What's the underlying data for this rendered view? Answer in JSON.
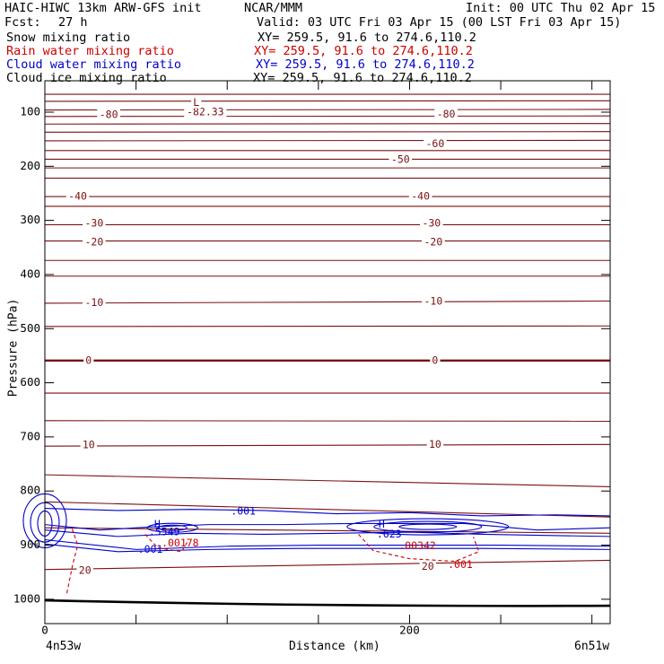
{
  "header": {
    "title": "HAIC-HIWC 13km ARW-GFS init",
    "org": "NCAR/MMM",
    "init": "Init: 00 UTC Thu 02 Apr 15",
    "fcst_label": "Fcst:",
    "fcst_value": "27 h",
    "valid": "Valid: 03 UTC Fri 03 Apr 15 (00 LST Fri 03 Apr 15)"
  },
  "fields": [
    {
      "name": "Snow mixing ratio",
      "xy": "XY= 259.5, 91.6 to 274.6,110.2",
      "color": "#000000"
    },
    {
      "name": "Rain water mixing ratio",
      "xy": "XY= 259.5, 91.6 to 274.6,110.2",
      "color": "#cc0000"
    },
    {
      "name": "Cloud water mixing ratio",
      "xy": "XY= 259.5, 91.6 to 274.6,110.2",
      "color": "#0000cc"
    },
    {
      "name": "Cloud ice mixing ratio",
      "xy": "XY= 259.5, 91.6 to 274.6,110.2",
      "color": "#000000"
    }
  ],
  "chart_data": {
    "type": "line",
    "xlabel": "Distance (km)",
    "ylabel": "Pressure (hPa)",
    "xlim": [
      0,
      310
    ],
    "ylim": [
      1045,
      42
    ],
    "x_ticks": [
      0,
      200
    ],
    "x_tick_labels": [
      "0",
      "200"
    ],
    "y_ticks": [
      100,
      200,
      300,
      400,
      500,
      600,
      700,
      800,
      900,
      1000
    ],
    "y_tick_labels": [
      "100",
      "200",
      "300",
      "400",
      "500",
      "600",
      "700",
      "800",
      "900",
      "1000"
    ],
    "x_endpoints": {
      "left": "4n53w",
      "right": "6n51w"
    },
    "temperature_contours": {
      "color": "#7a1010",
      "interval_c": 5,
      "contours_hpa": [
        {
          "left": 67,
          "right": 67
        },
        {
          "left": 80,
          "right": 79
        },
        {
          "left": 96,
          "right": 95
        },
        {
          "left": 108,
          "right": 107
        },
        {
          "left": 122,
          "right": 121
        },
        {
          "left": 137,
          "right": 136
        },
        {
          "left": 153,
          "right": 152
        },
        {
          "left": 171,
          "right": 171
        },
        {
          "left": 187,
          "right": 187
        },
        {
          "left": 203,
          "right": 203
        },
        {
          "left": 222,
          "right": 222
        },
        {
          "left": 256,
          "right": 256
        },
        {
          "left": 274,
          "right": 274
        },
        {
          "left": 308,
          "right": 308
        },
        {
          "left": 338,
          "right": 338
        },
        {
          "left": 374,
          "right": 374
        },
        {
          "left": 403,
          "right": 403
        },
        {
          "left": 453,
          "right": 449
        },
        {
          "left": 496,
          "right": 495
        },
        {
          "left": 559,
          "right": 559,
          "bold": true
        },
        {
          "left": 619,
          "right": 619
        },
        {
          "left": 670,
          "right": 671
        },
        {
          "left": 717,
          "right": 714
        },
        {
          "left": 770,
          "right": 792
        },
        {
          "left": 820,
          "right": 848
        },
        {
          "left": 868,
          "right": 878
        },
        {
          "left": 945,
          "right": 928
        }
      ]
    },
    "temperature_labels": [
      {
        "text": "-80",
        "x": 35,
        "p": 105
      },
      {
        "text": "-80",
        "x": 220,
        "p": 104
      },
      {
        "text": "-82.33",
        "x": 88,
        "p": 100
      },
      {
        "text": "L",
        "x": 83,
        "p": 83
      },
      {
        "text": "-60",
        "x": 214,
        "p": 159
      },
      {
        "text": "-50",
        "x": 195,
        "p": 188
      },
      {
        "text": "-40",
        "x": 18,
        "p": 256
      },
      {
        "text": "-40",
        "x": 206,
        "p": 256
      },
      {
        "text": "-30",
        "x": 27,
        "p": 306
      },
      {
        "text": "-30",
        "x": 212,
        "p": 306
      },
      {
        "text": "-20",
        "x": 27,
        "p": 340
      },
      {
        "text": "-20",
        "x": 213,
        "p": 340
      },
      {
        "text": "-10",
        "x": 27,
        "p": 452
      },
      {
        "text": "-10",
        "x": 213,
        "p": 450
      },
      {
        "text": "0",
        "x": 24,
        "p": 559
      },
      {
        "text": "0",
        "x": 214,
        "p": 559
      },
      {
        "text": "10",
        "x": 24,
        "p": 715
      },
      {
        "text": "10",
        "x": 214,
        "p": 714
      },
      {
        "text": "20",
        "x": 22,
        "p": 947
      },
      {
        "text": "20",
        "x": 210,
        "p": 940
      }
    ],
    "cloud_water": {
      "color": "#0000cc",
      "labels": [
        {
          "text": ".001",
          "x": 102,
          "p": 838
        },
        {
          "text": "H",
          "x": 60,
          "p": 862
        },
        {
          "text": ".5549",
          "x": 57,
          "p": 876
        },
        {
          "text": ".001",
          "x": 51,
          "p": 908
        },
        {
          "text": "H",
          "x": 183,
          "p": 862
        },
        {
          "text": ".623",
          "x": 182,
          "p": 880
        }
      ]
    },
    "rain_water": {
      "color": "#cc0000",
      "labels": [
        {
          "text": ".00178",
          "x": 64,
          "p": 897
        },
        {
          "text": ".00342",
          "x": 194,
          "p": 902
        },
        {
          "text": ".001",
          "x": 221,
          "p": 936
        }
      ]
    },
    "ground": {
      "left": 1002,
      "right": 1012
    }
  }
}
